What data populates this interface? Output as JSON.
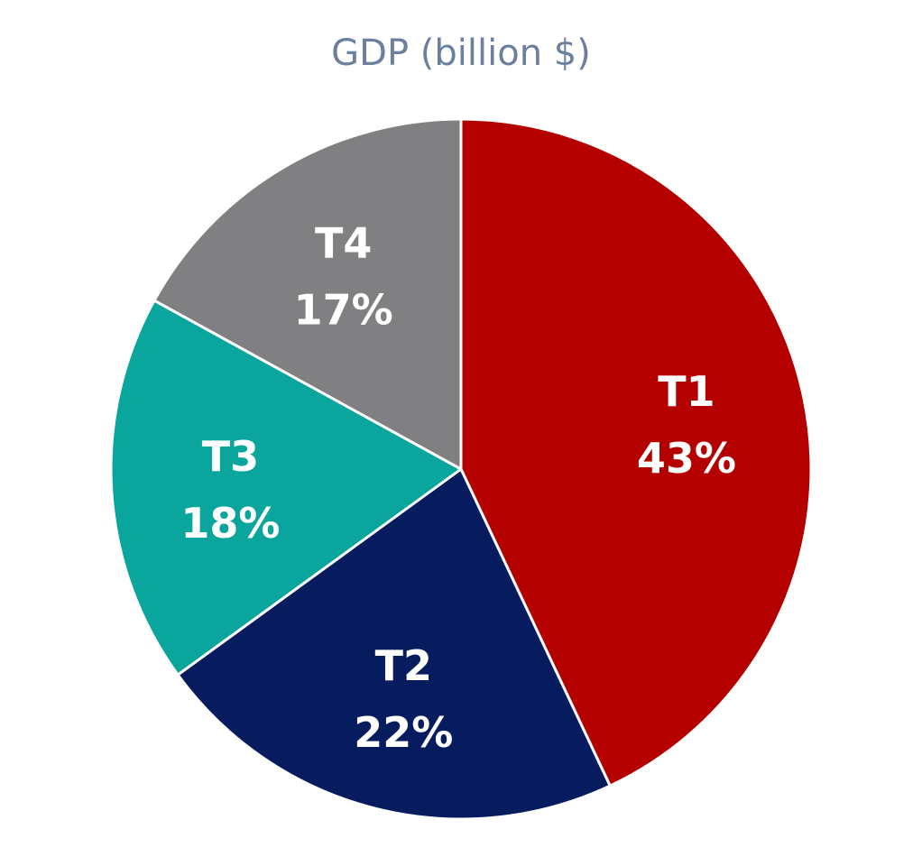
{
  "chart_data": {
    "type": "pie",
    "title": "GDP (billion $)",
    "slices": [
      {
        "label": "T1",
        "value": 43,
        "value_label": "43%",
        "color": "#b50000"
      },
      {
        "label": "T2",
        "value": 22,
        "value_label": "22%",
        "color": "#071c5e"
      },
      {
        "label": "T3",
        "value": 18,
        "value_label": "18%",
        "color": "#0aa59c"
      },
      {
        "label": "T4",
        "value": 17,
        "value_label": "17%",
        "color": "#808083"
      }
    ]
  }
}
